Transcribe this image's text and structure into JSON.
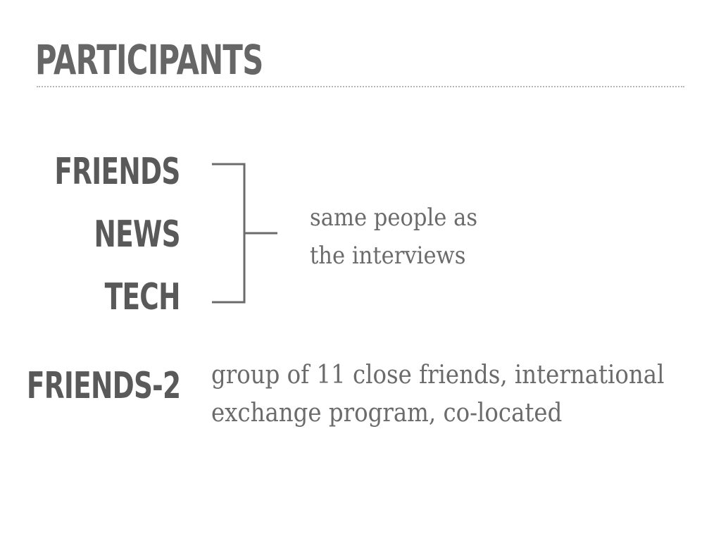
{
  "slide": {
    "title": "PARTICIPANTS",
    "groups": [
      {
        "label": "FRIENDS"
      },
      {
        "label": "NEWS"
      },
      {
        "label": "TECH"
      }
    ],
    "group_description": {
      "line1": "same people as",
      "line2": "the interviews"
    },
    "friends2": {
      "label": "FRIENDS-2",
      "line1": "group of 11 close friends, international",
      "line2": "exchange program, co-located"
    }
  },
  "colors": {
    "heading": "#666666",
    "label": "#595959",
    "body_text": "#6b6b6b",
    "bracket": "#6b6b6b",
    "divider": "#b5b5b5"
  }
}
